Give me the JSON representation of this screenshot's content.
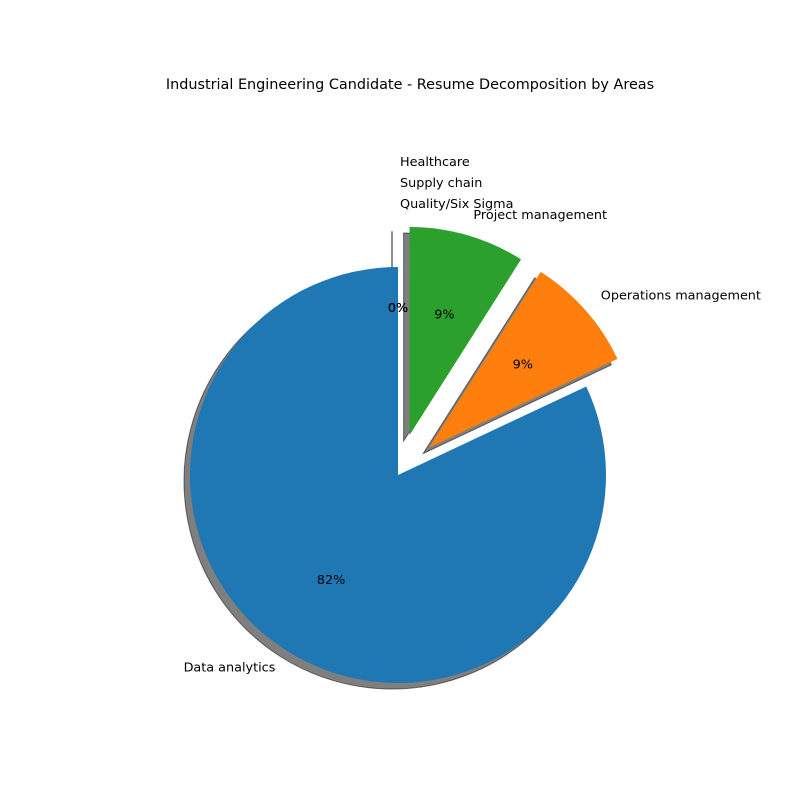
{
  "chart_data": {
    "type": "pie",
    "title": "Industrial Engineering Candidate - Resume Decomposition by Areas",
    "categories": [
      "Data analytics",
      "Operations management",
      "Project management",
      "Quality/Six Sigma",
      "Supply chain",
      "Healthcare"
    ],
    "values": [
      82,
      9,
      9,
      0,
      0,
      0
    ],
    "percent_labels": [
      "82%",
      "9%",
      "9%",
      "0%",
      "0%",
      "0%"
    ],
    "colors": [
      "#1f77b4",
      "#ff7f0e",
      "#2ca02c",
      "#d62728",
      "#9467bd",
      "#8c564b"
    ],
    "exploded": [
      false,
      true,
      true,
      true,
      true,
      true
    ],
    "shadow": true,
    "legend": "none"
  }
}
